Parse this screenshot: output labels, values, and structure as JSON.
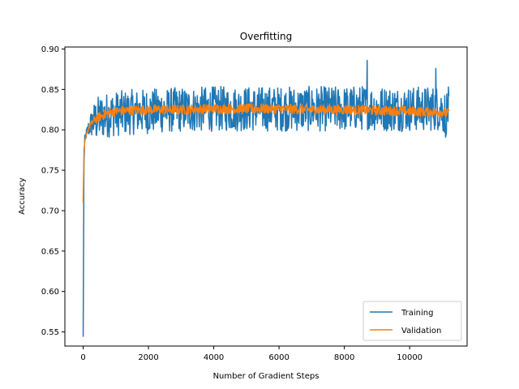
{
  "chart_data": {
    "type": "line",
    "title": "Overfitting",
    "xlabel": "Number of Gradient Steps",
    "ylabel": "Accuracy",
    "xlim": [
      -560,
      11760
    ],
    "ylim": [
      0.5325,
      0.9025
    ],
    "xticks": [
      0,
      2000,
      4000,
      6000,
      8000,
      10000
    ],
    "xtick_labels": [
      "0",
      "2000",
      "4000",
      "6000",
      "8000",
      "10000"
    ],
    "yticks": [
      0.55,
      0.6,
      0.65,
      0.7,
      0.75,
      0.8,
      0.85,
      0.9
    ],
    "ytick_labels": [
      "0.55",
      "0.60",
      "0.65",
      "0.70",
      "0.75",
      "0.80",
      "0.85",
      "0.90"
    ],
    "grid": false,
    "legend_position": "lower-right",
    "series": [
      {
        "name": "Training",
        "color": "#1f77b4",
        "x": [
          0,
          25,
          50,
          100,
          150,
          200,
          300,
          400,
          500,
          700,
          1000,
          1500,
          2000,
          2500,
          3000,
          3500,
          4000,
          4500,
          5000,
          5500,
          6000,
          6500,
          7000,
          7500,
          8000,
          8500,
          8700,
          9000,
          9500,
          10000,
          10500,
          10900,
          11100,
          11200
        ],
        "y": [
          0.544,
          0.76,
          0.79,
          0.795,
          0.8,
          0.805,
          0.81,
          0.812,
          0.815,
          0.818,
          0.82,
          0.822,
          0.823,
          0.824,
          0.825,
          0.825,
          0.826,
          0.826,
          0.826,
          0.826,
          0.826,
          0.826,
          0.826,
          0.826,
          0.826,
          0.827,
          0.828,
          0.826,
          0.826,
          0.826,
          0.826,
          0.827,
          0.82,
          0.826
        ],
        "noise_amplitude": 0.028,
        "peaks": [
          {
            "x": 8700,
            "y": 0.886
          },
          {
            "x": 10800,
            "y": 0.876
          },
          {
            "x": 11100,
            "y": 0.791
          }
        ]
      },
      {
        "name": "Validation",
        "color": "#ff7f0e",
        "x": [
          0,
          25,
          50,
          100,
          200,
          300,
          400,
          600,
          800,
          1000,
          1500,
          2000,
          3000,
          4000,
          5000,
          6000,
          7000,
          8000,
          9000,
          10000,
          11000,
          11200
        ],
        "y": [
          0.71,
          0.775,
          0.785,
          0.795,
          0.805,
          0.81,
          0.814,
          0.818,
          0.821,
          0.823,
          0.824,
          0.825,
          0.825,
          0.826,
          0.826,
          0.826,
          0.825,
          0.825,
          0.824,
          0.823,
          0.822,
          0.82
        ],
        "noise_amplitude": 0.006
      }
    ]
  }
}
